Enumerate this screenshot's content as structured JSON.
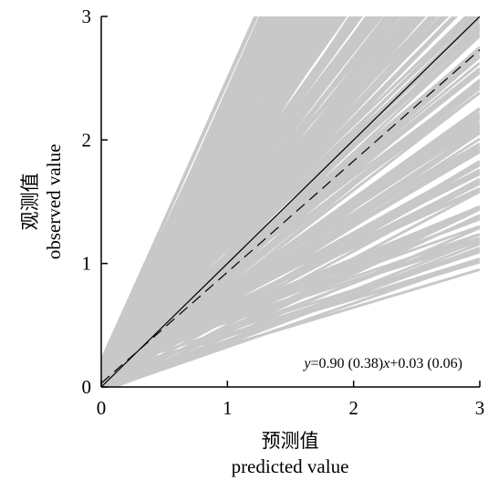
{
  "chart_data": {
    "type": "line",
    "xlabel_cn": "预测值",
    "xlabel_en": "predicted value",
    "ylabel_cn": "观测值",
    "ylabel_en": "observed value",
    "xlim": [
      0,
      3
    ],
    "ylim": [
      0,
      3
    ],
    "xticks": [
      "0",
      "1",
      "2",
      "3"
    ],
    "yticks": [
      "0",
      "1",
      "2",
      "3"
    ],
    "grid": false,
    "legend": "none",
    "fit_equation": {
      "y_var": "y",
      "x_var": "x",
      "body": "=0.90 (0.38)",
      "tail": "+0.03 (0.06)"
    },
    "series": [
      {
        "role": "bootstrap-lines",
        "style": "solid",
        "color": "#c8c8c8",
        "slope_range": [
          0.3,
          2.3
        ],
        "intercept_range": [
          -0.05,
          0.22
        ],
        "count": 300
      },
      {
        "role": "identity",
        "style": "solid",
        "color": "#000000",
        "slope": 1.0,
        "intercept": 0.0
      },
      {
        "role": "fitted",
        "style": "dashed",
        "color": "#000000",
        "slope": 0.9,
        "intercept": 0.03
      }
    ]
  }
}
